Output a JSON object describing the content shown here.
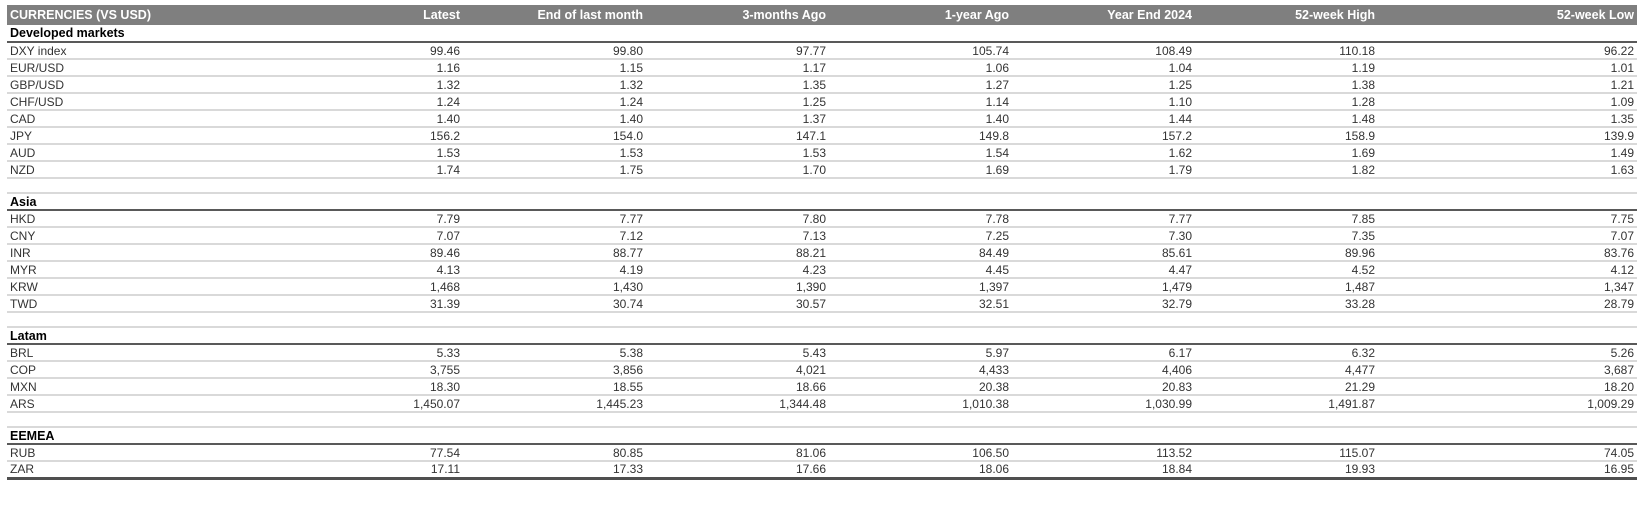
{
  "table": {
    "columns": [
      "CURRENCIES (VS USD)",
      "Latest",
      "End of last month",
      "3-months Ago",
      "1-year Ago",
      "Year End 2024",
      "52-week High",
      "52-week Low"
    ],
    "sections": [
      {
        "name": "Developed markets",
        "rows": [
          {
            "label": "DXY index",
            "values": [
              "99.46",
              "99.80",
              "97.77",
              "105.74",
              "108.49",
              "110.18",
              "96.22"
            ]
          },
          {
            "label": "EUR/USD",
            "values": [
              "1.16",
              "1.15",
              "1.17",
              "1.06",
              "1.04",
              "1.19",
              "1.01"
            ]
          },
          {
            "label": "GBP/USD",
            "values": [
              "1.32",
              "1.32",
              "1.35",
              "1.27",
              "1.25",
              "1.38",
              "1.21"
            ]
          },
          {
            "label": "CHF/USD",
            "values": [
              "1.24",
              "1.24",
              "1.25",
              "1.14",
              "1.10",
              "1.28",
              "1.09"
            ]
          },
          {
            "label": "CAD",
            "values": [
              "1.40",
              "1.40",
              "1.37",
              "1.40",
              "1.44",
              "1.48",
              "1.35"
            ]
          },
          {
            "label": "JPY",
            "values": [
              "156.2",
              "154.0",
              "147.1",
              "149.8",
              "157.2",
              "158.9",
              "139.9"
            ]
          },
          {
            "label": "AUD",
            "values": [
              "1.53",
              "1.53",
              "1.53",
              "1.54",
              "1.62",
              "1.69",
              "1.49"
            ]
          },
          {
            "label": "NZD",
            "values": [
              "1.74",
              "1.75",
              "1.70",
              "1.69",
              "1.79",
              "1.82",
              "1.63"
            ]
          }
        ]
      },
      {
        "name": "Asia",
        "rows": [
          {
            "label": "HKD",
            "values": [
              "7.79",
              "7.77",
              "7.80",
              "7.78",
              "7.77",
              "7.85",
              "7.75"
            ]
          },
          {
            "label": "CNY",
            "values": [
              "7.07",
              "7.12",
              "7.13",
              "7.25",
              "7.30",
              "7.35",
              "7.07"
            ]
          },
          {
            "label": "INR",
            "values": [
              "89.46",
              "88.77",
              "88.21",
              "84.49",
              "85.61",
              "89.96",
              "83.76"
            ]
          },
          {
            "label": "MYR",
            "values": [
              "4.13",
              "4.19",
              "4.23",
              "4.45",
              "4.47",
              "4.52",
              "4.12"
            ]
          },
          {
            "label": "KRW",
            "values": [
              "1,468",
              "1,430",
              "1,390",
              "1,397",
              "1,479",
              "1,487",
              "1,347"
            ]
          },
          {
            "label": "TWD",
            "values": [
              "31.39",
              "30.74",
              "30.57",
              "32.51",
              "32.79",
              "33.28",
              "28.79"
            ]
          }
        ]
      },
      {
        "name": "Latam",
        "rows": [
          {
            "label": "BRL",
            "values": [
              "5.33",
              "5.38",
              "5.43",
              "5.97",
              "6.17",
              "6.32",
              "5.26"
            ]
          },
          {
            "label": "COP",
            "values": [
              "3,755",
              "3,856",
              "4,021",
              "4,433",
              "4,406",
              "4,477",
              "3,687"
            ]
          },
          {
            "label": "MXN",
            "values": [
              "18.30",
              "18.55",
              "18.66",
              "20.38",
              "20.83",
              "21.29",
              "18.20"
            ]
          },
          {
            "label": "ARS",
            "values": [
              "1,450.07",
              "1,445.23",
              "1,344.48",
              "1,010.38",
              "1,030.99",
              "1,491.87",
              "1,009.29"
            ]
          }
        ]
      },
      {
        "name": "EEMEA",
        "rows": [
          {
            "label": "RUB",
            "values": [
              "77.54",
              "80.85",
              "81.06",
              "106.50",
              "113.52",
              "115.07",
              "74.05"
            ]
          },
          {
            "label": "ZAR",
            "values": [
              "17.11",
              "17.33",
              "17.66",
              "18.06",
              "18.84",
              "19.93",
              "16.95"
            ]
          }
        ]
      }
    ]
  },
  "colors": {
    "header_bar_bg": "#7f7f7f",
    "header_bar_text": "#ffffff",
    "section_rule": "#595959",
    "row_rule": "#d9d9d9",
    "bottom_rule": "#4f4f4f",
    "body_text": "#333333",
    "section_text": "#000000"
  }
}
